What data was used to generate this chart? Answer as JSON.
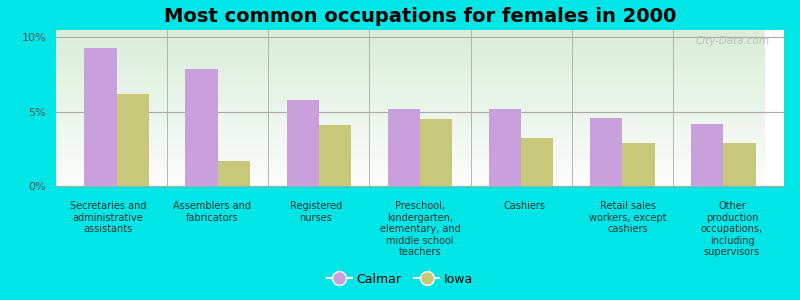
{
  "title": "Most common occupations for females in 2000",
  "categories": [
    "Secretaries and\nadministrative\nassistants",
    "Assemblers and\nfabricators",
    "Registered\nnurses",
    "Preschool,\nkindergarten,\nelementary, and\nmiddle school\nteachers",
    "Cashiers",
    "Retail sales\nworkers, except\ncashiers",
    "Other\nproduction\noccupations,\nincluding\nsupervisors"
  ],
  "calmar_values": [
    9.3,
    7.9,
    5.8,
    5.2,
    5.2,
    4.6,
    4.2
  ],
  "iowa_values": [
    6.2,
    1.7,
    4.1,
    4.5,
    3.2,
    2.9,
    2.9
  ],
  "calmar_color": "#c9a0dc",
  "iowa_color": "#c8c87a",
  "background_color": "#00e5e5",
  "plot_bg_top": "#e8f0e0",
  "plot_bg_bottom": "#f8fdf0",
  "ylim": [
    0,
    10.5
  ],
  "yticks": [
    0,
    5,
    10
  ],
  "ytick_labels": [
    "0%",
    "5%",
    "10%"
  ],
  "bar_width": 0.32,
  "legend_labels": [
    "Calmar",
    "Iowa"
  ],
  "watermark": "City-Data.com",
  "title_fontsize": 14,
  "tick_fontsize": 7,
  "legend_fontsize": 9
}
